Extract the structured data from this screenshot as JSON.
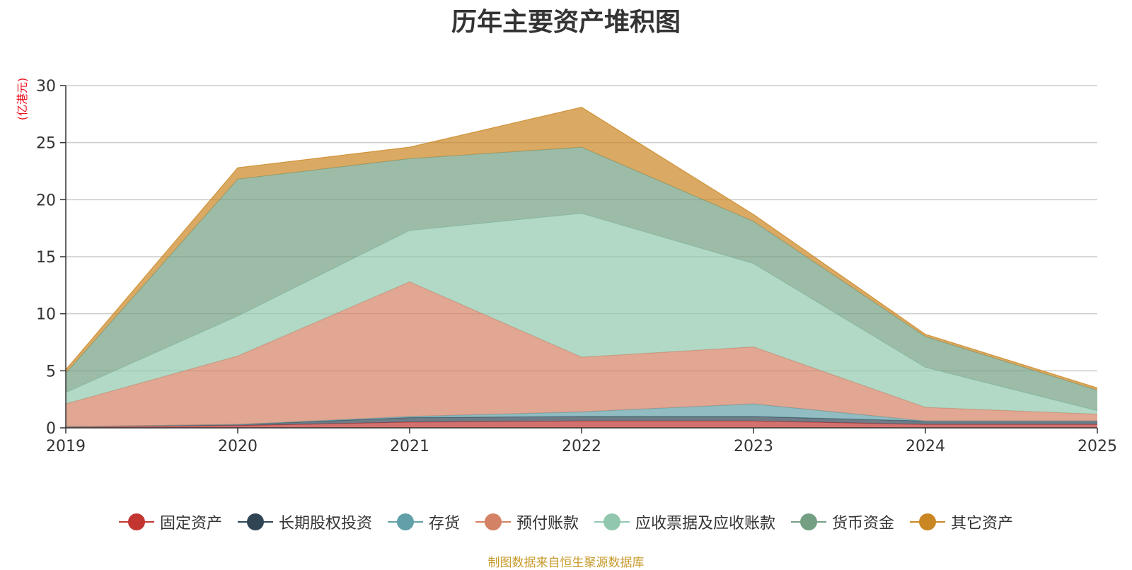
{
  "chart_data": {
    "type": "area",
    "stacked": true,
    "title": "历年主要资产堆积图",
    "ylabel": "(亿港元)",
    "xlabel": "",
    "categories": [
      "2019",
      "2020",
      "2021",
      "2022",
      "2023",
      "2024",
      "2025"
    ],
    "yticks": [
      0,
      5,
      10,
      15,
      20,
      25,
      30
    ],
    "ylim": [
      0,
      30
    ],
    "grid": true,
    "legend_position": "bottom",
    "series": [
      {
        "name": "固定资产",
        "color": "#c23531",
        "values": [
          0.1,
          0.2,
          0.5,
          0.6,
          0.6,
          0.3,
          0.3
        ]
      },
      {
        "name": "长期股权投资",
        "color": "#2f4554",
        "values": [
          0.0,
          0.1,
          0.4,
          0.4,
          0.4,
          0.3,
          0.3
        ]
      },
      {
        "name": "存货",
        "color": "#61a0a8",
        "values": [
          0.0,
          0.0,
          0.1,
          0.4,
          1.1,
          0.0,
          0.0
        ]
      },
      {
        "name": "预付账款",
        "color": "#d48265",
        "values": [
          2.0,
          6.0,
          11.8,
          4.8,
          5.0,
          1.2,
          0.6
        ]
      },
      {
        "name": "应收票据及应收账款",
        "color": "#91c7ae",
        "values": [
          1.0,
          3.5,
          4.5,
          12.6,
          7.3,
          3.5,
          0.3
        ]
      },
      {
        "name": "货币资金",
        "color": "#749f83",
        "values": [
          1.7,
          12.0,
          6.3,
          5.8,
          3.7,
          2.7,
          1.8
        ]
      },
      {
        "name": "其它资产",
        "color": "#ca8622",
        "values": [
          0.3,
          1.0,
          1.0,
          3.5,
          0.6,
          0.2,
          0.2
        ]
      }
    ],
    "source_note": "制图数据来自恒生聚源数据库"
  }
}
